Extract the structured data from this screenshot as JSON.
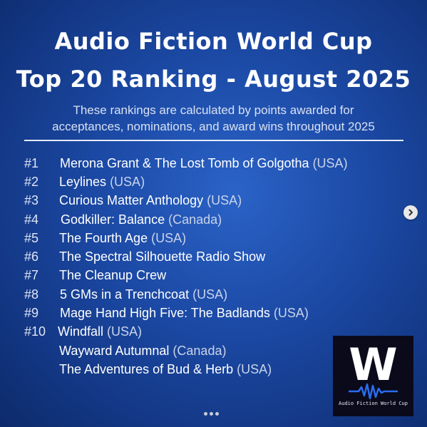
{
  "post": {
    "title_line1": "Audio Fiction World Cup",
    "title_line2": "Top 20 Ranking - August 2025",
    "subtitle_line1": "These rankings are calculated by points awarded for",
    "subtitle_line2": "acceptances, nominations, and award wins throughout 2025",
    "rankings": [
      {
        "rank": "#1",
        "title": "Merona Grant & The Lost Tomb of Golgotha",
        "country": "(USA)"
      },
      {
        "rank": "#2",
        "title": "Leylines",
        "country": "(USA)"
      },
      {
        "rank": "#3",
        "title": "Curious Matter Anthology",
        "country": "(USA)"
      },
      {
        "rank": "#4",
        "title": "Godkiller: Balance",
        "country": "(Canada)"
      },
      {
        "rank": "#5",
        "title": "The Fourth Age",
        "country": "(USA)"
      },
      {
        "rank": "#6",
        "title": "The Spectral Silhouette Radio Show",
        "country": ""
      },
      {
        "rank": "#7",
        "title": "The Cleanup Crew",
        "country": ""
      },
      {
        "rank": "#8",
        "title": "5 GMs in a Trenchcoat",
        "country": "(USA)"
      },
      {
        "rank": "#9",
        "title": "Mage Hand High Five: The Badlands",
        "country": "(USA)"
      },
      {
        "rank": "#10",
        "title": "Windfall",
        "country": "(USA)"
      },
      {
        "rank": "",
        "title": "Wayward Autumnal",
        "country": "(Canada)"
      },
      {
        "rank": "",
        "title": "The Adventures of Bud & Herb",
        "country": "(USA)"
      }
    ],
    "logo": {
      "letter": "W",
      "caption": "Audio Fiction World Cup"
    }
  },
  "carousel": {
    "next_icon": "chevron-right-icon",
    "dot_count": 3
  },
  "colors": {
    "background_center": "#2b63c7",
    "background_edge": "#0d2a6b",
    "logo_background": "#0a0a1a",
    "logo_wave": "#2a6df0"
  }
}
